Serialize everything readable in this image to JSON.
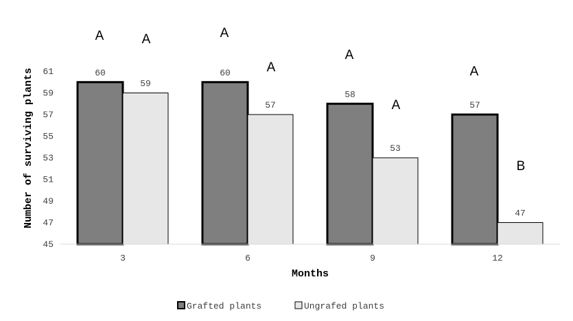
{
  "chart_data": {
    "type": "bar",
    "title": "",
    "xlabel": "Months",
    "ylabel": "Number of surviving plants",
    "categories": [
      "3",
      "6",
      "9",
      "12"
    ],
    "ylim": [
      45,
      61
    ],
    "yticks": [
      "45",
      "47",
      "49",
      "51",
      "53",
      "55",
      "57",
      "59",
      "61"
    ],
    "grid": false,
    "legend_position": "bottom",
    "series": [
      {
        "name": "Grafted plants",
        "values": [
          60,
          60,
          58,
          57
        ],
        "color": "#7f7f7f",
        "border": "#000000",
        "letters": [
          "A",
          "A",
          "A",
          "A"
        ]
      },
      {
        "name": "Ungrafed plants",
        "values": [
          59,
          57,
          53,
          47
        ],
        "color": "#e7e7e7",
        "border": "#000000",
        "letters": [
          "A",
          "A",
          "A",
          "B"
        ]
      }
    ]
  }
}
